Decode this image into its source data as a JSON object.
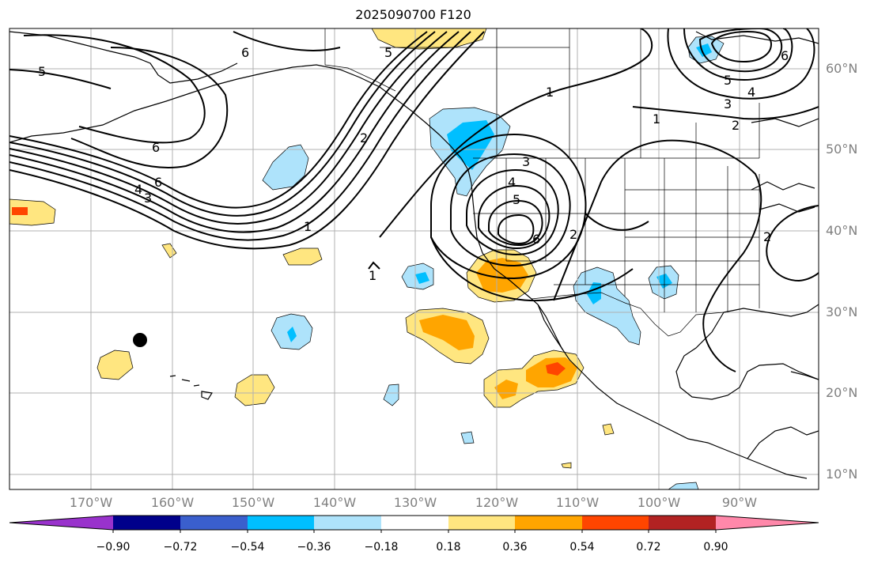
{
  "title": "2025090700 F120",
  "lat_labels": [
    "60°N",
    "50°N",
    "40°N",
    "30°N",
    "20°N",
    "10°N"
  ],
  "lon_labels": [
    "170°W",
    "160°W",
    "150°W",
    "140°W",
    "130°W",
    "120°W",
    "110°W",
    "100°W",
    "90°W"
  ],
  "colorbar": {
    "tick_labels": [
      "−0.90",
      "−0.72",
      "−0.54",
      "−0.36",
      "−0.18",
      "0.18",
      "0.36",
      "0.54",
      "0.72",
      "0.90"
    ],
    "colors": [
      "#9932cc",
      "#00008b",
      "#3a5fcd",
      "#00bfff",
      "#aee3fb",
      "#ffffff",
      "#ffe680",
      "#ffa500",
      "#ff4500",
      "#b22222",
      "#ff88aa"
    ]
  },
  "contour_labels": [
    "5",
    "6",
    "6",
    "6",
    "4",
    "3",
    "1",
    "2",
    "5",
    "1",
    "1",
    "1",
    "3",
    "4",
    "5",
    "6",
    "2",
    "2",
    "2",
    "3",
    "4",
    "5",
    "6"
  ],
  "colors": {
    "contour": "#000000",
    "grid": "#b0b0b0",
    "coast": "#000000"
  }
}
